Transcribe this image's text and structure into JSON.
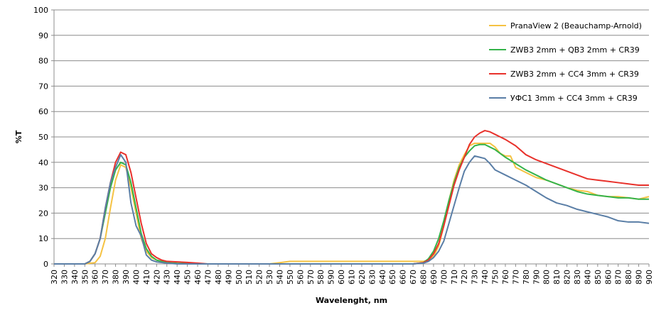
{
  "chart_data": {
    "type": "line",
    "title": "",
    "xlabel": "Wavelenght, nm",
    "ylabel": "%T",
    "xlim": [
      320,
      900
    ],
    "ylim": [
      0,
      100
    ],
    "x_ticks": [
      320,
      330,
      340,
      350,
      360,
      370,
      380,
      390,
      400,
      410,
      420,
      430,
      440,
      450,
      460,
      470,
      480,
      490,
      500,
      510,
      520,
      530,
      540,
      550,
      560,
      570,
      580,
      590,
      600,
      610,
      620,
      630,
      640,
      650,
      660,
      670,
      680,
      690,
      700,
      710,
      720,
      730,
      740,
      750,
      760,
      770,
      780,
      790,
      800,
      810,
      820,
      830,
      840,
      850,
      860,
      870,
      880,
      890,
      900
    ],
    "y_ticks": [
      0,
      10,
      20,
      30,
      40,
      50,
      60,
      70,
      80,
      90,
      100
    ],
    "grid": "horizontal",
    "legend": "top-right",
    "series": [
      {
        "name": "PranaView 2 (Beauchamp-Arnold)",
        "color": "#f5c242",
        "points": [
          [
            320,
            0
          ],
          [
            350,
            0
          ],
          [
            360,
            0.5
          ],
          [
            365,
            3
          ],
          [
            370,
            10
          ],
          [
            375,
            22
          ],
          [
            380,
            33
          ],
          [
            385,
            39
          ],
          [
            390,
            38
          ],
          [
            395,
            30
          ],
          [
            400,
            20
          ],
          [
            405,
            10
          ],
          [
            410,
            5
          ],
          [
            415,
            2.5
          ],
          [
            420,
            1.5
          ],
          [
            425,
            1
          ],
          [
            430,
            0.5
          ],
          [
            440,
            0.2
          ],
          [
            460,
            0
          ],
          [
            530,
            0
          ],
          [
            540,
            0.5
          ],
          [
            550,
            1
          ],
          [
            600,
            1
          ],
          [
            650,
            1
          ],
          [
            680,
            1
          ],
          [
            685,
            1.5
          ],
          [
            690,
            3
          ],
          [
            695,
            7
          ],
          [
            700,
            15
          ],
          [
            705,
            25
          ],
          [
            710,
            33
          ],
          [
            715,
            39
          ],
          [
            720,
            43
          ],
          [
            725,
            46.5
          ],
          [
            730,
            47.5
          ],
          [
            740,
            47.5
          ],
          [
            745,
            47.5
          ],
          [
            750,
            46
          ],
          [
            755,
            43.5
          ],
          [
            760,
            42.5
          ],
          [
            765,
            42.5
          ],
          [
            770,
            38
          ],
          [
            775,
            37
          ],
          [
            780,
            36
          ],
          [
            790,
            34
          ],
          [
            800,
            33
          ],
          [
            810,
            31.5
          ],
          [
            820,
            30
          ],
          [
            830,
            29
          ],
          [
            840,
            28.5
          ],
          [
            850,
            27
          ],
          [
            860,
            26.5
          ],
          [
            870,
            26.5
          ],
          [
            880,
            26
          ],
          [
            890,
            25.5
          ],
          [
            900,
            26.5
          ]
        ]
      },
      {
        "name": "ZWB3 2mm + QB3 2mm + CR39",
        "color": "#34b34a",
        "points": [
          [
            320,
            0
          ],
          [
            350,
            0
          ],
          [
            355,
            1
          ],
          [
            360,
            4
          ],
          [
            365,
            10
          ],
          [
            370,
            20
          ],
          [
            375,
            30
          ],
          [
            380,
            37
          ],
          [
            385,
            40
          ],
          [
            390,
            39
          ],
          [
            395,
            32
          ],
          [
            400,
            22
          ],
          [
            405,
            12
          ],
          [
            410,
            6
          ],
          [
            415,
            3
          ],
          [
            420,
            1.5
          ],
          [
            425,
            1
          ],
          [
            430,
            0.5
          ],
          [
            440,
            0.2
          ],
          [
            460,
            0
          ],
          [
            670,
            0
          ],
          [
            680,
            0.5
          ],
          [
            685,
            2
          ],
          [
            690,
            5
          ],
          [
            695,
            10
          ],
          [
            700,
            17
          ],
          [
            705,
            25
          ],
          [
            710,
            32
          ],
          [
            715,
            38
          ],
          [
            720,
            42
          ],
          [
            725,
            44.5
          ],
          [
            730,
            46.5
          ],
          [
            735,
            47
          ],
          [
            740,
            47
          ],
          [
            745,
            46
          ],
          [
            750,
            45
          ],
          [
            755,
            43.5
          ],
          [
            760,
            42
          ],
          [
            770,
            39.5
          ],
          [
            780,
            37
          ],
          [
            790,
            35
          ],
          [
            800,
            33
          ],
          [
            810,
            31.5
          ],
          [
            820,
            30
          ],
          [
            830,
            28.5
          ],
          [
            840,
            27.5
          ],
          [
            850,
            27
          ],
          [
            860,
            26.5
          ],
          [
            870,
            26
          ],
          [
            880,
            26
          ],
          [
            890,
            25.5
          ],
          [
            900,
            25.5
          ]
        ]
      },
      {
        "name": "ZWB3 2mm + CC4 3mm + CR39",
        "color": "#e8312b",
        "points": [
          [
            320,
            0
          ],
          [
            350,
            0
          ],
          [
            355,
            1
          ],
          [
            360,
            4
          ],
          [
            365,
            10
          ],
          [
            370,
            22
          ],
          [
            375,
            32
          ],
          [
            380,
            40
          ],
          [
            385,
            44
          ],
          [
            390,
            43
          ],
          [
            395,
            36
          ],
          [
            400,
            26
          ],
          [
            405,
            16
          ],
          [
            410,
            8
          ],
          [
            415,
            4
          ],
          [
            420,
            2.5
          ],
          [
            425,
            1.5
          ],
          [
            430,
            1
          ],
          [
            440,
            0.8
          ],
          [
            450,
            0.6
          ],
          [
            460,
            0.3
          ],
          [
            470,
            0
          ],
          [
            670,
            0
          ],
          [
            680,
            0.5
          ],
          [
            685,
            1.5
          ],
          [
            690,
            4
          ],
          [
            695,
            8
          ],
          [
            700,
            15
          ],
          [
            705,
            23
          ],
          [
            710,
            31
          ],
          [
            715,
            37
          ],
          [
            720,
            42
          ],
          [
            725,
            47
          ],
          [
            730,
            50
          ],
          [
            735,
            51.5
          ],
          [
            740,
            52.5
          ],
          [
            745,
            52
          ],
          [
            750,
            51
          ],
          [
            755,
            50
          ],
          [
            760,
            49
          ],
          [
            770,
            46.5
          ],
          [
            780,
            43
          ],
          [
            790,
            41
          ],
          [
            800,
            39.5
          ],
          [
            810,
            38
          ],
          [
            820,
            36.5
          ],
          [
            830,
            35
          ],
          [
            840,
            33.5
          ],
          [
            850,
            33
          ],
          [
            860,
            32.5
          ],
          [
            870,
            32
          ],
          [
            880,
            31.5
          ],
          [
            890,
            31
          ],
          [
            900,
            31
          ]
        ]
      },
      {
        "name": "УФС1 3mm + CC4 3mm + CR39",
        "color": "#5a7ea6",
        "points": [
          [
            320,
            0
          ],
          [
            350,
            0
          ],
          [
            355,
            1
          ],
          [
            360,
            4
          ],
          [
            365,
            10
          ],
          [
            370,
            22
          ],
          [
            375,
            32
          ],
          [
            380,
            38
          ],
          [
            385,
            43
          ],
          [
            390,
            40
          ],
          [
            395,
            24
          ],
          [
            400,
            15
          ],
          [
            405,
            11
          ],
          [
            410,
            3.5
          ],
          [
            415,
            1.5
          ],
          [
            420,
            0.8
          ],
          [
            430,
            0.3
          ],
          [
            440,
            0
          ],
          [
            670,
            0
          ],
          [
            680,
            0.3
          ],
          [
            685,
            1
          ],
          [
            690,
            2.5
          ],
          [
            695,
            5
          ],
          [
            700,
            9
          ],
          [
            705,
            16
          ],
          [
            710,
            23
          ],
          [
            715,
            30
          ],
          [
            720,
            36.5
          ],
          [
            725,
            40
          ],
          [
            730,
            42.5
          ],
          [
            735,
            42
          ],
          [
            740,
            41.5
          ],
          [
            745,
            39.5
          ],
          [
            750,
            37
          ],
          [
            760,
            35
          ],
          [
            770,
            33
          ],
          [
            780,
            31
          ],
          [
            790,
            28.5
          ],
          [
            800,
            26
          ],
          [
            810,
            24
          ],
          [
            820,
            23
          ],
          [
            830,
            21.5
          ],
          [
            840,
            20.5
          ],
          [
            850,
            19.5
          ],
          [
            860,
            18.5
          ],
          [
            870,
            17
          ],
          [
            880,
            16.5
          ],
          [
            890,
            16.5
          ],
          [
            900,
            16
          ]
        ]
      }
    ]
  }
}
